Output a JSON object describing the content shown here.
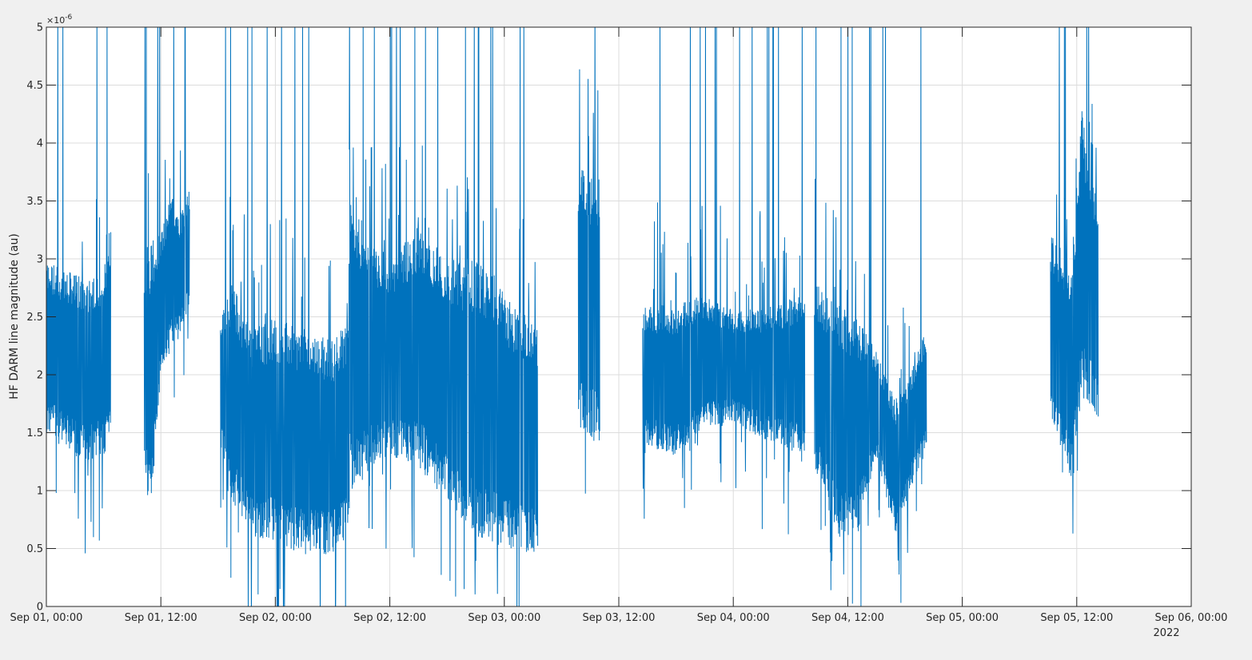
{
  "chart_data": {
    "type": "line",
    "title": "",
    "xlabel": "",
    "ylabel": "HF DARM line magnitude (au)",
    "y_exponent_label": "×10",
    "y_exponent_power": "-6",
    "x_secondary_label": "2022",
    "xlim": [
      "2022-09-01T00:00",
      "2022-09-06T00:00"
    ],
    "ylim": [
      0,
      5
    ],
    "y_scale_factor": "1e-6",
    "grid": true,
    "legend": "none",
    "colors": {
      "line": "#0072BD",
      "grid": "#dcdcdc",
      "axes": "#262626",
      "background": "#ffffff",
      "figure": "#f0f0f0"
    },
    "x_ticks": [
      {
        "value": "2022-09-01T00:00",
        "label": "Sep 01, 00:00"
      },
      {
        "value": "2022-09-01T12:00",
        "label": "Sep 01, 12:00"
      },
      {
        "value": "2022-09-02T00:00",
        "label": "Sep 02, 00:00"
      },
      {
        "value": "2022-09-02T12:00",
        "label": "Sep 02, 12:00"
      },
      {
        "value": "2022-09-03T00:00",
        "label": "Sep 03, 00:00"
      },
      {
        "value": "2022-09-03T12:00",
        "label": "Sep 03, 12:00"
      },
      {
        "value": "2022-09-04T00:00",
        "label": "Sep 04, 00:00"
      },
      {
        "value": "2022-09-04T12:00",
        "label": "Sep 04, 12:00"
      },
      {
        "value": "2022-09-05T00:00",
        "label": "Sep 05, 00:00"
      },
      {
        "value": "2022-09-05T12:00",
        "label": "Sep 05, 12:00"
      },
      {
        "value": "2022-09-06T00:00",
        "label": "Sep 06, 00:00"
      }
    ],
    "y_ticks": [
      {
        "value": 0,
        "label": "0"
      },
      {
        "value": 0.5,
        "label": "0.5"
      },
      {
        "value": 1,
        "label": "1"
      },
      {
        "value": 1.5,
        "label": "1.5"
      },
      {
        "value": 2,
        "label": "2"
      },
      {
        "value": 2.5,
        "label": "2.5"
      },
      {
        "value": 3,
        "label": "3"
      },
      {
        "value": 3.5,
        "label": "3.5"
      },
      {
        "value": 4,
        "label": "4"
      },
      {
        "value": 4.5,
        "label": "4.5"
      },
      {
        "value": 5,
        "label": "5"
      }
    ],
    "series": [
      {
        "color": "#0072BD",
        "envelope_note_units": "x in ISO datetime; y in units of 1e-6",
        "segments": [
          {
            "start": "2022-09-01T00:00",
            "end": "2022-09-01T06:45",
            "envelope": [
              [
                "2022-09-01T00:00",
                1.5,
                3.0
              ],
              [
                "2022-09-01T02:00",
                1.35,
                2.9
              ],
              [
                "2022-09-01T04:00",
                1.25,
                2.85
              ],
              [
                "2022-09-01T06:00",
                1.3,
                2.9
              ],
              [
                "2022-09-01T06:40",
                1.4,
                3.3
              ]
            ]
          },
          {
            "start": "2022-09-01T10:15",
            "end": "2022-09-01T15:00",
            "envelope": [
              [
                "2022-09-01T10:15",
                1.0,
                2.8
              ],
              [
                "2022-09-01T11:00",
                0.9,
                3.2
              ],
              [
                "2022-09-01T12:00",
                2.0,
                3.2
              ],
              [
                "2022-09-01T13:00",
                2.2,
                3.6
              ],
              [
                "2022-09-01T14:00",
                2.3,
                3.4
              ],
              [
                "2022-09-01T15:00",
                2.6,
                3.6
              ]
            ]
          },
          {
            "start": "2022-09-01T18:15",
            "end": "2022-09-02T07:45",
            "envelope": [
              [
                "2022-09-01T18:15",
                1.4,
                2.5
              ],
              [
                "2022-09-01T19:30",
                0.9,
                2.8
              ],
              [
                "2022-09-01T21:30",
                0.6,
                2.4
              ],
              [
                "2022-09-02T00:00",
                0.55,
                2.5
              ],
              [
                "2022-09-02T03:00",
                0.45,
                2.4
              ],
              [
                "2022-09-02T06:00",
                0.45,
                2.3
              ],
              [
                "2022-09-02T07:45",
                0.6,
                2.5
              ]
            ]
          },
          {
            "start": "2022-09-02T07:45",
            "end": "2022-09-03T03:30",
            "envelope": [
              [
                "2022-09-02T08:00",
                1.0,
                3.5
              ],
              [
                "2022-09-02T10:00",
                1.2,
                3.2
              ],
              [
                "2022-09-02T12:00",
                1.3,
                3.0
              ],
              [
                "2022-09-02T15:00",
                1.2,
                3.3
              ],
              [
                "2022-09-02T18:00",
                0.9,
                3.0
              ],
              [
                "2022-09-02T21:00",
                0.6,
                3.0
              ],
              [
                "2022-09-03T00:00",
                0.5,
                2.7
              ],
              [
                "2022-09-03T03:30",
                0.45,
                2.4
              ]
            ]
          },
          {
            "start": "2022-09-03T07:45",
            "end": "2022-09-03T10:00",
            "envelope": [
              [
                "2022-09-03T07:45",
                1.5,
                3.8
              ],
              [
                "2022-09-03T10:00",
                1.4,
                3.7
              ]
            ]
          },
          {
            "start": "2022-09-03T14:30",
            "end": "2022-09-04T07:30",
            "envelope": [
              [
                "2022-09-03T14:30",
                1.4,
                2.6
              ],
              [
                "2022-09-03T18:00",
                1.3,
                2.6
              ],
              [
                "2022-09-03T21:00",
                1.55,
                2.7
              ],
              [
                "2022-09-04T00:00",
                1.6,
                2.55
              ],
              [
                "2022-09-04T04:00",
                1.4,
                2.6
              ],
              [
                "2022-09-04T07:30",
                1.3,
                2.7
              ]
            ]
          },
          {
            "start": "2022-09-04T08:30",
            "end": "2022-09-04T20:15",
            "envelope": [
              [
                "2022-09-04T08:30",
                1.2,
                2.8
              ],
              [
                "2022-09-04T11:00",
                0.6,
                2.6
              ],
              [
                "2022-09-04T13:00",
                0.6,
                2.5
              ],
              [
                "2022-09-04T15:00",
                1.3,
                2.2
              ],
              [
                "2022-09-04T17:00",
                0.6,
                1.8
              ],
              [
                "2022-09-04T18:30",
                1.0,
                2.0
              ],
              [
                "2022-09-04T20:15",
                1.35,
                2.4
              ]
            ]
          },
          {
            "start": "2022-09-05T09:15",
            "end": "2022-09-05T14:15",
            "envelope": [
              [
                "2022-09-05T09:15",
                1.6,
                3.2
              ],
              [
                "2022-09-05T11:30",
                1.0,
                3.0
              ],
              [
                "2022-09-05T12:30",
                1.8,
                4.3
              ],
              [
                "2022-09-05T14:15",
                1.6,
                3.5
              ]
            ]
          }
        ]
      }
    ]
  }
}
